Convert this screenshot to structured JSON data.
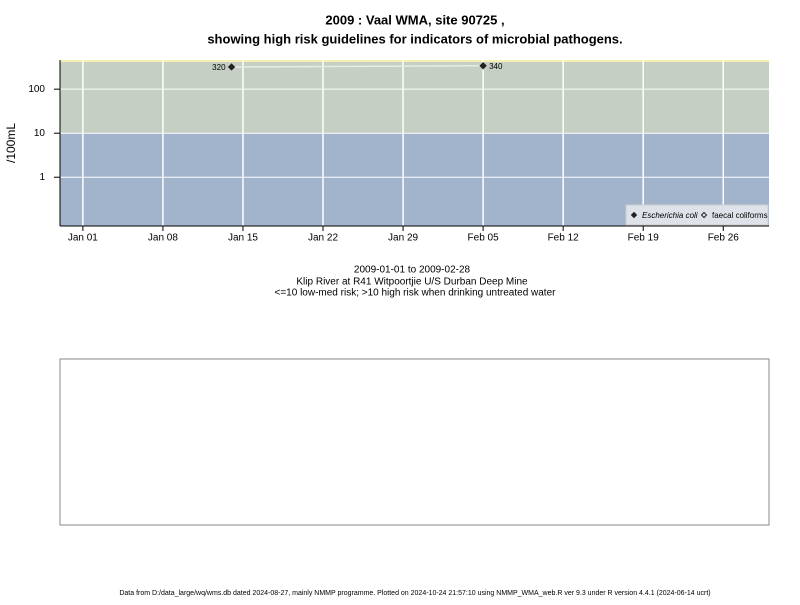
{
  "chart_data": {
    "type": "scatter",
    "title": "2009 : Vaal WMA, site 90725 ,",
    "subtitle": "showing high risk guidelines for indicators of microbial pathogens.",
    "y_label": "/100mL",
    "date_range": "2009-01-01 to 2009-02-28",
    "site_description": "Klip River at R41 Witpoortjie U/S Durban Deep Mine",
    "risk_note": "<=10 low-med risk; >10 high risk when drinking untreated water",
    "risk_threshold": 10,
    "x": [
      "Jan 14",
      "Feb 05"
    ],
    "series": [
      {
        "name": "Escherichia coli",
        "color": "#222222",
        "values": [
          320,
          340
        ]
      },
      {
        "name": "faecal coliforms",
        "color": "#222222",
        "values": [
          null,
          null
        ]
      }
    ],
    "xlim": [
      "Dec 30",
      "Mar 02"
    ],
    "xticks": [
      "Jan 01",
      "Jan 08",
      "Jan 15",
      "Jan 22",
      "Jan 29",
      "Feb 05",
      "Feb 12",
      "Feb 19",
      "Feb 26"
    ],
    "ylim": [
      0.078,
      460
    ],
    "yticks": [
      1,
      10,
      100
    ],
    "log_y": true,
    "grid": true,
    "legend": "bottom-right",
    "footer": "Data from D:/data_large/wq/wms.db dated 2024-08-27, mainly NMMP programme. Plotted on 2024-10-24 21:57:10 using NMMP_WMA_web.R ver 9.3 under R version 4.4.1 (2024-06-14 ucrt)"
  }
}
